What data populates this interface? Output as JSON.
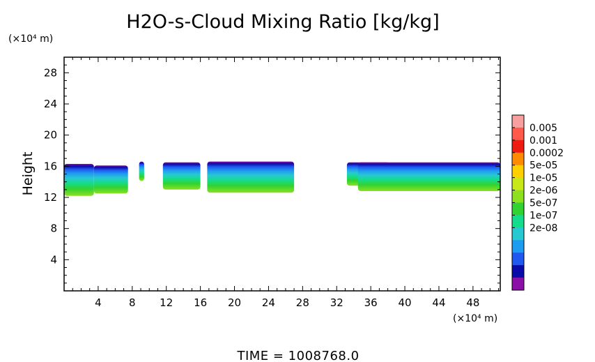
{
  "chart_data": {
    "type": "heatmap",
    "title": "H2O-s-Cloud Mixing Ratio [kg/kg]",
    "xlabel": "",
    "ylabel": "Height",
    "x_unit": "(×10⁴ m)",
    "y_unit": "(×10⁴ m)",
    "xlim": [
      0,
      51.2
    ],
    "ylim": [
      0,
      30
    ],
    "x_ticks": [
      4,
      8,
      12,
      16,
      20,
      24,
      28,
      32,
      36,
      40,
      44,
      48
    ],
    "y_ticks": [
      4,
      8,
      12,
      16,
      20,
      24,
      28
    ],
    "x_tick_labels": [
      "4",
      "8",
      "12",
      "16",
      "20",
      "24",
      "28",
      "32",
      "36",
      "40",
      "44",
      "48"
    ],
    "y_tick_labels": [
      "4",
      "8",
      "12",
      "16",
      "20",
      "24",
      "28"
    ],
    "colorbar": {
      "labels": [
        "0.005",
        "0.001",
        "0.0002",
        "5e-05",
        "1e-05",
        "2e-06",
        "5e-07",
        "1e-07",
        "2e-08"
      ],
      "colors": [
        "#f8a0a0",
        "#ff5a4a",
        "#ee1c10",
        "#ff8c00",
        "#ffd000",
        "#c8e818",
        "#8ce020",
        "#32d232",
        "#14dc8c",
        "#28c8d2",
        "#1e9cf0",
        "#2058f0",
        "#0a0aa8",
        "#8a10a8"
      ]
    },
    "cloud_regions": [
      {
        "x_range": [
          0.0,
          3.5
        ],
        "y_range": [
          12.2,
          16.3
        ]
      },
      {
        "x_range": [
          3.5,
          7.5
        ],
        "y_range": [
          12.5,
          16.1
        ]
      },
      {
        "x_range": [
          8.8,
          9.4
        ],
        "y_range": [
          14.1,
          16.6
        ]
      },
      {
        "x_range": [
          11.6,
          16.0
        ],
        "y_range": [
          13.0,
          16.5
        ]
      },
      {
        "x_range": [
          16.8,
          27.0
        ],
        "y_range": [
          12.6,
          16.6
        ]
      },
      {
        "x_range": [
          33.2,
          38.2
        ],
        "y_range": [
          13.5,
          16.5
        ]
      },
      {
        "x_range": [
          34.5,
          51.2
        ],
        "y_range": [
          12.8,
          16.5
        ]
      }
    ],
    "grid": false,
    "legend": "colorbar-right"
  },
  "footer": {
    "time_label": "TIME = 1008768.0"
  }
}
